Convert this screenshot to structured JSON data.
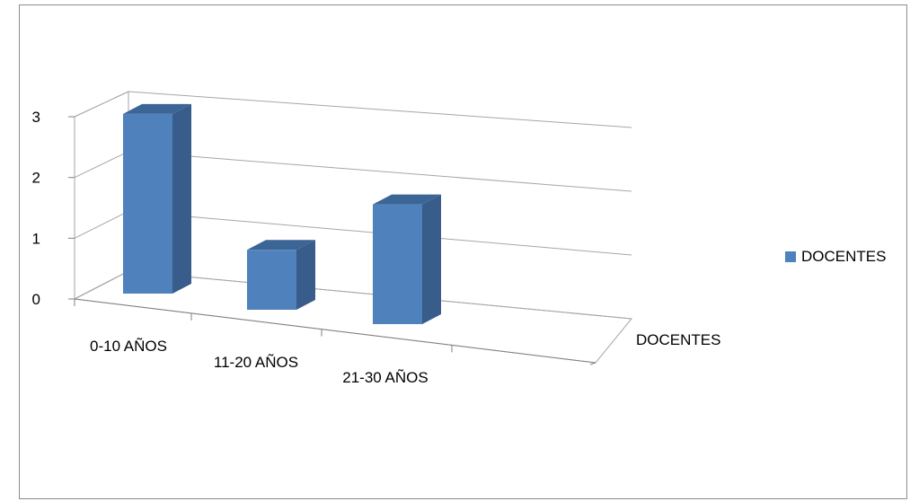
{
  "chart_data": {
    "type": "bar",
    "categories": [
      "0-10 AÑOS",
      "11-20 AÑOS",
      "21-30 AÑOS"
    ],
    "series": [
      {
        "name": "DOCENTES",
        "values": [
          3,
          1,
          2
        ]
      }
    ],
    "depth_axis_label": "DOCENTES",
    "ylim": [
      0,
      3
    ],
    "yticks": [
      "0",
      "1",
      "2",
      "3"
    ],
    "grid": true,
    "legend_position": "right",
    "colors": {
      "bar_front": "#4f81bd",
      "bar_side": "#385d8a",
      "bar_top": "#3b6595",
      "grid": "#a6a6a6"
    }
  }
}
